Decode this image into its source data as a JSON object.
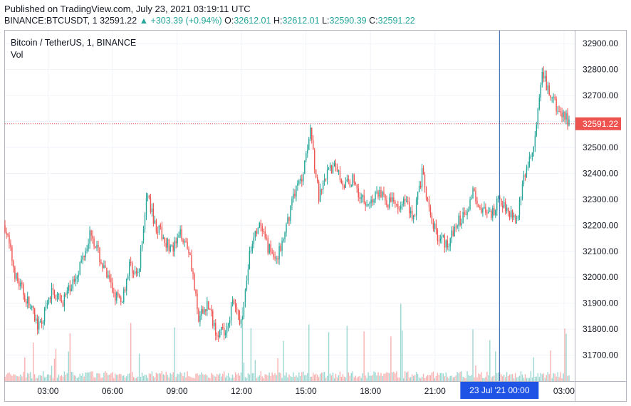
{
  "header": {
    "published": "Published on TradingView.com, July 23, 2021 03:19:11 UTC",
    "symbol": "BINANCE:BTCUSDT, 1",
    "last": "32591.22",
    "change": "▲ +303.39 (+0.94%)",
    "open_label": "O:",
    "open": "32612.01",
    "high_label": "H:",
    "high": "32612.01",
    "low_label": "L:",
    "low": "32590.39",
    "close_label": "C:",
    "close": "32591.22"
  },
  "legend": {
    "title": "Bitcoin / TetherUS, 1, BINANCE",
    "volume": "Vol"
  },
  "colors": {
    "up": "#26a69a",
    "down": "#ef5350",
    "grid": "#f0f3fa",
    "crosshair": "#1e53e5",
    "last_price": "#ef5350"
  },
  "chart_data": {
    "type": "candlestick",
    "title": "Bitcoin / TetherUS, 1, BINANCE",
    "interval_minutes": 1,
    "ylim": [
      31600,
      32950
    ],
    "y_ticks": [
      "32900.00",
      "32800.00",
      "32700.00",
      "32600.00",
      "32500.00",
      "32400.00",
      "32300.00",
      "32200.00",
      "32100.00",
      "32000.00",
      "31900.00",
      "31800.00",
      "31700.00"
    ],
    "y_tick_values": [
      32900,
      32800,
      32700,
      32600,
      32500,
      32400,
      32300,
      32200,
      32100,
      32000,
      31900,
      31800,
      31700
    ],
    "x_ticks": [
      "03:00",
      "06:00",
      "09:00",
      "12:00",
      "15:00",
      "18:00",
      "21:00",
      "03:00"
    ],
    "x_tick_hours": [
      3,
      6,
      9,
      12,
      15,
      18,
      21,
      27
    ],
    "x_range_hours": [
      1.0,
      27.5
    ],
    "crosshair_label": "23 Jul '21   00:00",
    "crosshair_hour": 24,
    "last_price_label": "32591.22",
    "last_price": 32591.22,
    "path_hours": [
      1.0,
      1.5,
      2.2,
      2.6,
      3.2,
      3.6,
      4.0,
      4.5,
      5.0,
      5.5,
      6.0,
      6.4,
      6.8,
      7.2,
      7.6,
      8.0,
      8.4,
      8.8,
      9.2,
      9.6,
      10.0,
      10.4,
      10.8,
      11.2,
      11.6,
      12.0,
      12.4,
      12.8,
      13.2,
      13.6,
      14.0,
      14.4,
      14.8,
      15.2,
      15.6,
      16.0,
      16.4,
      16.8,
      17.2,
      17.6,
      18.0,
      18.4,
      18.8,
      19.2,
      19.6,
      20.0,
      20.4,
      20.8,
      21.2,
      21.6,
      22.0,
      22.4,
      22.8,
      23.2,
      23.6,
      24.0,
      24.4,
      24.8,
      25.2,
      25.6,
      26.0,
      26.4,
      26.8,
      27.3
    ],
    "path_prices": [
      32200,
      32000,
      31880,
      31800,
      31950,
      31900,
      31950,
      32050,
      32180,
      32050,
      31950,
      31900,
      32050,
      32000,
      32320,
      32200,
      32150,
      32100,
      32170,
      32100,
      31830,
      31900,
      31800,
      31780,
      31900,
      31820,
      32100,
      32200,
      32120,
      32070,
      32150,
      32320,
      32380,
      32580,
      32300,
      32400,
      32430,
      32350,
      32380,
      32300,
      32290,
      32330,
      32290,
      32280,
      32300,
      32230,
      32400,
      32220,
      32150,
      32130,
      32200,
      32250,
      32330,
      32260,
      32230,
      32300,
      32260,
      32230,
      32400,
      32500,
      32780,
      32690,
      32630,
      32600
    ],
    "volume_note": "volume histogram (relative scale, no printed values)"
  }
}
